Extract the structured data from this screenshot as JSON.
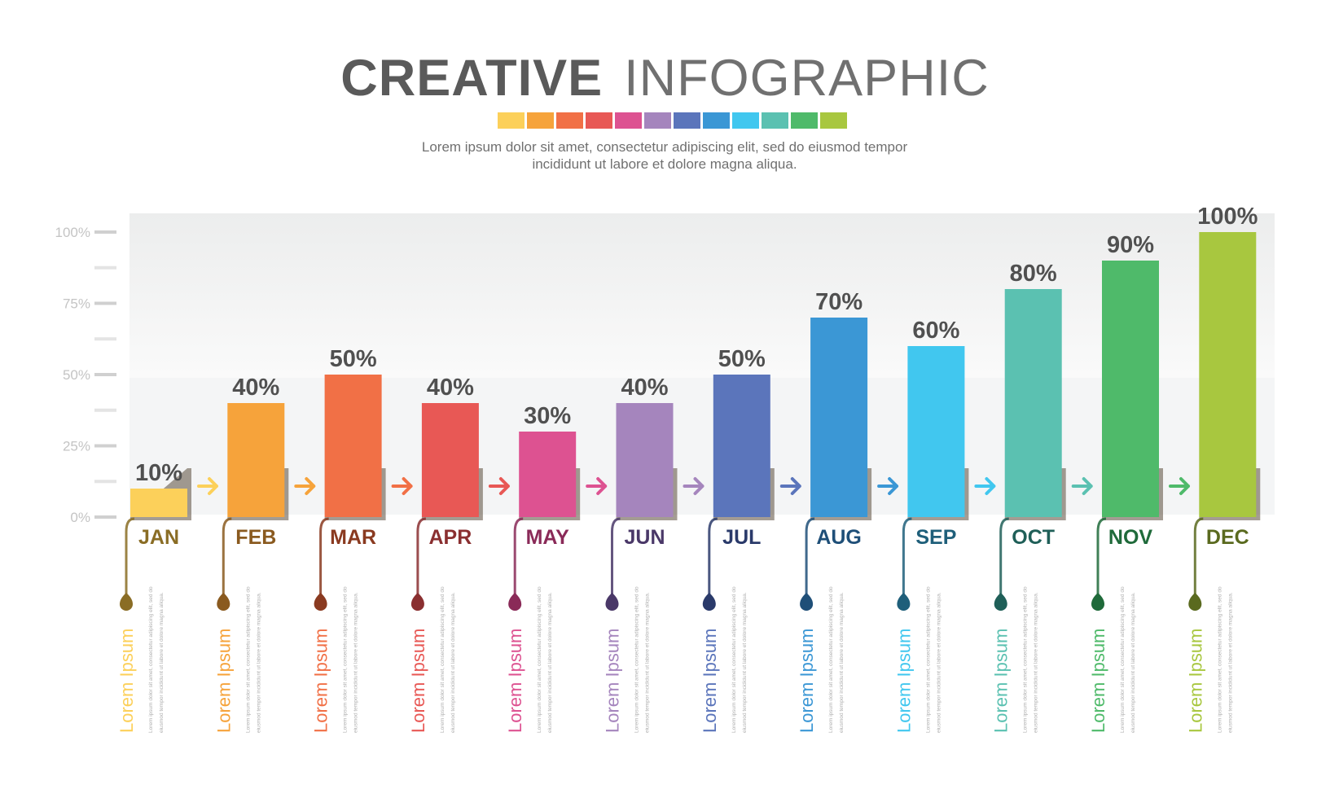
{
  "header": {
    "title_bold": "CREATIVE",
    "title_light": "INFOGRAPHIC",
    "subtitle_line1": "Lorem ipsum dolor sit amet, consectetur adipiscing elit, sed do eiusmod tempor",
    "subtitle_line2": "incididunt ut labore et dolore magna aliqua.",
    "swatch_colors": [
      "#fcd05a",
      "#f6a33b",
      "#f17046",
      "#e85855",
      "#dd5291",
      "#a585bd",
      "#5b75bb",
      "#3b97d5",
      "#41c7ef",
      "#5bc1b1",
      "#4fba6a",
      "#a8c73f"
    ]
  },
  "chart_data": {
    "type": "bar",
    "categories": [
      "JAN",
      "FEB",
      "MAR",
      "APR",
      "MAY",
      "JUN",
      "JUL",
      "AUG",
      "SEP",
      "OCT",
      "NOV",
      "DEC"
    ],
    "values": [
      10,
      40,
      50,
      40,
      30,
      40,
      50,
      70,
      60,
      80,
      90,
      100
    ],
    "data_labels": [
      "10%",
      "40%",
      "50%",
      "40%",
      "30%",
      "40%",
      "50%",
      "70%",
      "60%",
      "80%",
      "90%",
      "100%"
    ],
    "yticks": [
      "0%",
      "25%",
      "50%",
      "75%",
      "100%"
    ],
    "ylim": [
      0,
      100
    ],
    "colors": [
      "#fcd05a",
      "#f6a33b",
      "#f17046",
      "#e85855",
      "#dd5291",
      "#a585bd",
      "#5b75bb",
      "#3b97d5",
      "#41c7ef",
      "#5bc1b1",
      "#4fba6a",
      "#a8c73f"
    ],
    "label_colors": [
      "#8a6d25",
      "#8a5a1f",
      "#8a3a20",
      "#8a2f30",
      "#8a2a58",
      "#4a3868",
      "#2a3a6a",
      "#1f4f78",
      "#1f5f7a",
      "#1f5f58",
      "#1f6a3a",
      "#5a6a1f"
    ],
    "item_title": "Lorem Ipsum",
    "item_text_line1": "Lorem ipsum dolor sit amet, consectetur adipiscing elit, sed do",
    "item_text_line2": "eiusmod tempor incididunt ut labore et dolore magna aliqua."
  }
}
